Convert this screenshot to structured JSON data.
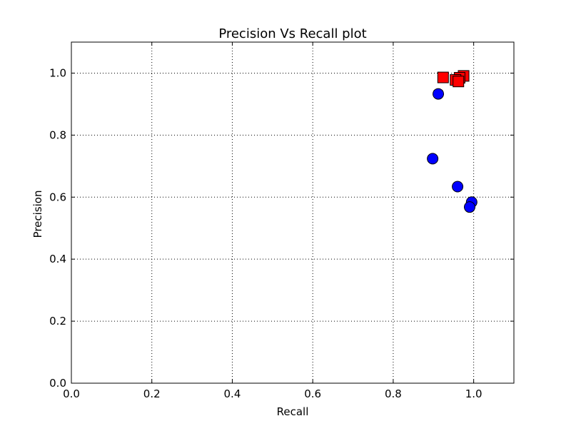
{
  "chart_data": {
    "type": "scatter",
    "title": "Precision Vs Recall plot",
    "xlabel": "Recall",
    "ylabel": "Precision",
    "xlim": [
      0.0,
      1.1
    ],
    "ylim": [
      0.0,
      1.1
    ],
    "xticks": [
      "0.0",
      "0.2",
      "0.4",
      "0.6",
      "0.8",
      "1.0"
    ],
    "yticks": [
      "0.0",
      "0.2",
      "0.4",
      "0.6",
      "0.8",
      "1.0"
    ],
    "grid": true,
    "series": [
      {
        "marker": "circle",
        "color": "#0000ff",
        "points": [
          {
            "x": 0.912,
            "y": 0.933
          },
          {
            "x": 0.898,
            "y": 0.724
          },
          {
            "x": 0.96,
            "y": 0.634
          },
          {
            "x": 0.995,
            "y": 0.584
          },
          {
            "x": 0.99,
            "y": 0.568
          }
        ]
      },
      {
        "marker": "square",
        "color": "#ff0000",
        "points": [
          {
            "x": 0.924,
            "y": 0.986
          },
          {
            "x": 0.975,
            "y": 0.991
          },
          {
            "x": 0.965,
            "y": 0.985
          },
          {
            "x": 0.955,
            "y": 0.978
          },
          {
            "x": 0.962,
            "y": 0.973
          }
        ]
      }
    ]
  }
}
